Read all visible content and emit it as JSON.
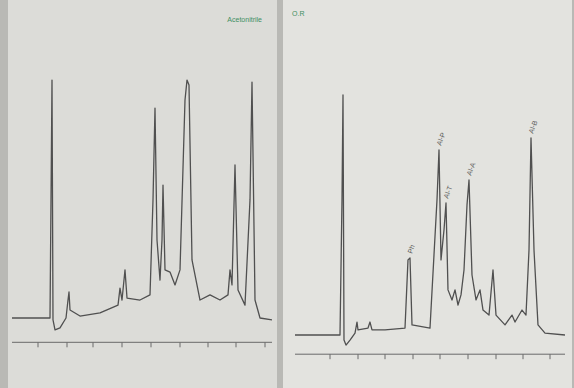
{
  "chart_data": [
    {
      "type": "line",
      "title": "Acetonitrile",
      "tick_labels": false,
      "xlim": [
        0,
        26
      ],
      "ylim": [
        -10,
        105
      ],
      "xticks": [
        2.6,
        5.5,
        8.1,
        11.0,
        13.9,
        16.8,
        19.6,
        22.4,
        25.3
      ],
      "series": [
        {
          "color": "#505050",
          "x": [
            0,
            3.8,
            3.9,
            4.0,
            4.1,
            4.3,
            4.8,
            5.4,
            5.6,
            5.7,
            5.8,
            6.8,
            8.8,
            10.6,
            10.8,
            11.0,
            11.3,
            11.5,
            12.8,
            13.8,
            14.1,
            14.3,
            14.5,
            14.8,
            15.0,
            15.1,
            15.3,
            15.8,
            16.3,
            16.8,
            17.3,
            17.5,
            17.7,
            18.0,
            18.8,
            19.8,
            20.8,
            21.6,
            21.8,
            22.0,
            22.3,
            22.6,
            23.3,
            23.8,
            24.0,
            24.3,
            24.8,
            26.0
          ],
          "values": [
            0,
            0,
            48.6,
            97.9,
            -0.8,
            -4.9,
            -4.1,
            0,
            7.4,
            10.7,
            3.3,
            0.8,
            2.1,
            5.3,
            12.3,
            7.4,
            19.8,
            8.2,
            7.4,
            9.5,
            48.6,
            86.4,
            32.1,
            15.6,
            32.1,
            54.7,
            19.8,
            18.9,
            13.6,
            19.8,
            89.7,
            97.9,
            95.9,
            23.9,
            7.4,
            9.5,
            7.4,
            9.5,
            19.8,
            13.6,
            63.0,
            11.5,
            5.3,
            48.6,
            97.1,
            7.4,
            0,
            -0.8
          ]
        }
      ]
    },
    {
      "type": "line",
      "title": "O.R",
      "tick_labels": false,
      "xlim": [
        0,
        27
      ],
      "ylim": [
        -8,
        105
      ],
      "xticks": [
        3.5,
        6.3,
        9.0,
        11.8,
        14.5,
        17.3,
        20.1,
        22.8,
        25.5
      ],
      "annotations": [
        {
          "text": "Ph",
          "x": 11.5
        },
        {
          "text": "Al-P",
          "x": 14.4
        },
        {
          "text": "Al-T",
          "x": 15.1
        },
        {
          "text": "Al-A",
          "x": 17.4
        },
        {
          "text": "Al-B",
          "x": 23.6
        }
      ],
      "series": [
        {
          "color": "#505050",
          "x": [
            0,
            4.5,
            4.7,
            4.8,
            4.9,
            5.1,
            5.5,
            6.0,
            6.2,
            6.3,
            7.3,
            7.5,
            7.7,
            9.0,
            11.0,
            11.3,
            11.5,
            11.7,
            13.5,
            14.2,
            14.4,
            14.6,
            14.9,
            15.1,
            15.3,
            15.7,
            16.0,
            16.3,
            16.6,
            16.9,
            17.2,
            17.4,
            17.7,
            18.1,
            18.5,
            18.8,
            19.4,
            19.8,
            20.1,
            21.0,
            21.7,
            22.0,
            22.7,
            23.1,
            23.4,
            23.6,
            23.9,
            24.3,
            25.0,
            27.0
          ],
          "values": [
            0,
            0,
            56.3,
            100,
            -2.1,
            -4.2,
            -2.1,
            0.8,
            5.4,
            2.1,
            2.9,
            5.4,
            2.1,
            2.1,
            2.9,
            31.3,
            32.1,
            4.2,
            2.9,
            56.3,
            77.1,
            31.3,
            43.8,
            55.0,
            18.8,
            14.6,
            18.8,
            12.5,
            16.7,
            27.1,
            54.2,
            64.6,
            25.0,
            14.6,
            18.8,
            10.4,
            8.3,
            27.1,
            8.3,
            4.2,
            8.3,
            5.4,
            10.4,
            8.3,
            35.4,
            82.1,
            35.4,
            4.2,
            0.8,
            0
          ]
        }
      ]
    }
  ]
}
